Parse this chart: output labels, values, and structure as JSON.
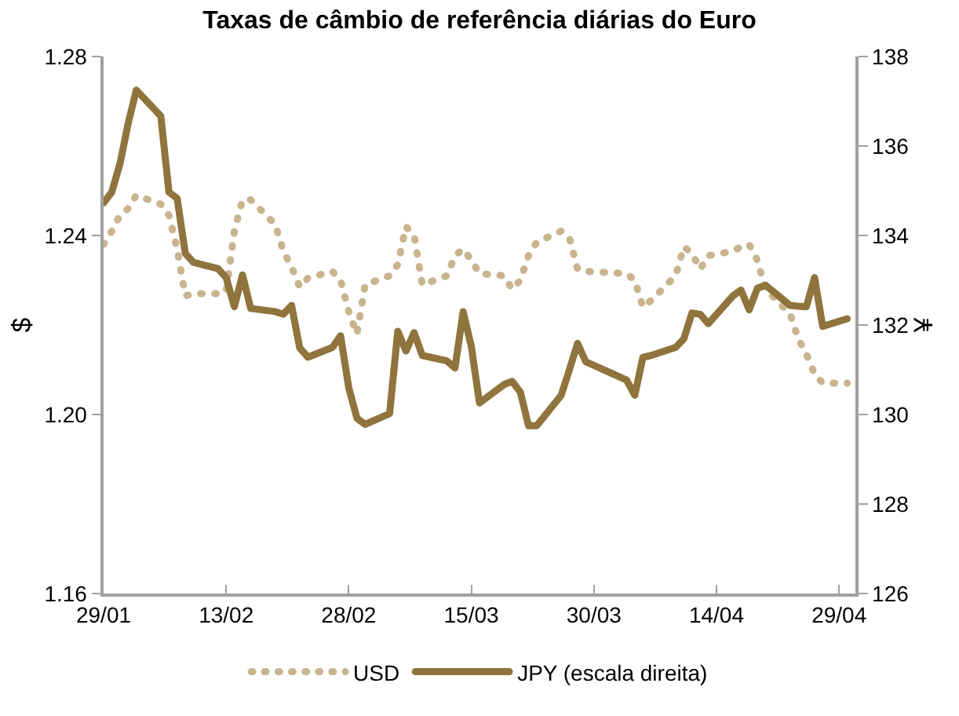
{
  "chart_data": {
    "type": "line",
    "title": "Taxas de câmbio de referência diárias do Euro",
    "ylabel": "$",
    "y2label": "¥",
    "xlim": [
      "--01-29",
      "--05-01"
    ],
    "xticks": [
      {
        "value": "--01-29",
        "label": "29/01"
      },
      {
        "value": "--02-13",
        "label": "13/02"
      },
      {
        "value": "--02-28",
        "label": "28/02"
      },
      {
        "value": "--03-15",
        "label": "15/03"
      },
      {
        "value": "--03-30",
        "label": "30/03"
      },
      {
        "value": "--04-14",
        "label": "14/04"
      },
      {
        "value": "--04-29",
        "label": "29/04"
      }
    ],
    "ylim": [
      1.16,
      1.28
    ],
    "yticks": [
      1.16,
      {
        "value": 1.2,
        "label": "1.20"
      },
      1.24,
      1.28
    ],
    "y2lim": [
      126,
      138
    ],
    "y2ticks": [
      126,
      128,
      130,
      132,
      134,
      136,
      138
    ],
    "legend": "bottom",
    "series": [
      {
        "name": "USD",
        "color": "#c8b48f",
        "line_style": "dotted",
        "marker": "none",
        "x": [
          "--01-29",
          "--01-30",
          "--01-31",
          "--02-01",
          "--02-02",
          "--02-05",
          "--02-06",
          "--02-07",
          "--02-08",
          "--02-09",
          "--02-12",
          "--02-13",
          "--02-14",
          "--02-15",
          "--02-16",
          "--02-19",
          "--02-20",
          "--02-21",
          "--02-22",
          "--02-23",
          "--02-26",
          "--02-27",
          "--02-28",
          "--03-01",
          "--03-02",
          "--03-05",
          "--03-06",
          "--03-07",
          "--03-08",
          "--03-09",
          "--03-12",
          "--03-13",
          "--03-14",
          "--03-15",
          "--03-16",
          "--03-19",
          "--03-20",
          "--03-21",
          "--03-22",
          "--03-23",
          "--03-26",
          "--03-27",
          "--03-28",
          "--03-29",
          "--04-03",
          "--04-04",
          "--04-05",
          "--04-06",
          "--04-09",
          "--04-10",
          "--04-11",
          "--04-12",
          "--04-13",
          "--04-16",
          "--04-17",
          "--04-18",
          "--04-19",
          "--04-20",
          "--04-23",
          "--04-24",
          "--04-25",
          "--04-26",
          "--04-27",
          "--04-30"
        ],
        "values": [
          1.238,
          1.241,
          1.2445,
          1.246,
          1.249,
          1.247,
          1.2445,
          1.237,
          1.2265,
          1.227,
          1.227,
          1.2275,
          1.241,
          1.248,
          1.248,
          1.2425,
          1.2365,
          1.233,
          1.2285,
          1.2305,
          1.232,
          1.23,
          1.223,
          1.218,
          1.229,
          1.231,
          1.2335,
          1.242,
          1.24,
          1.229,
          1.231,
          1.2355,
          1.237,
          1.2345,
          1.2315,
          1.231,
          1.228,
          1.23,
          1.2355,
          1.2385,
          1.241,
          1.2395,
          1.2325,
          1.232,
          1.2315,
          1.23,
          1.224,
          1.2255,
          1.231,
          1.2375,
          1.236,
          1.2325,
          1.2355,
          1.2365,
          1.2375,
          1.238,
          1.2345,
          1.228,
          1.2225,
          1.217,
          1.2135,
          1.209,
          1.207,
          1.207
        ]
      },
      {
        "name": "JPY (escala direita)",
        "color": "#8f743d",
        "axis": "y2",
        "line_style": "solid",
        "marker": "none",
        "x": [
          "--01-29",
          "--01-30",
          "--01-31",
          "--02-01",
          "--02-02",
          "--02-05",
          "--02-06",
          "--02-07",
          "--02-08",
          "--02-09",
          "--02-12",
          "--02-13",
          "--02-14",
          "--02-15",
          "--02-16",
          "--02-19",
          "--02-20",
          "--02-21",
          "--02-22",
          "--02-23",
          "--02-26",
          "--02-27",
          "--02-28",
          "--03-01",
          "--03-02",
          "--03-05",
          "--03-06",
          "--03-07",
          "--03-08",
          "--03-09",
          "--03-12",
          "--03-13",
          "--03-14",
          "--03-15",
          "--03-16",
          "--03-19",
          "--03-20",
          "--03-21",
          "--03-22",
          "--03-23",
          "--03-26",
          "--03-27",
          "--03-28",
          "--03-29",
          "--04-03",
          "--04-04",
          "--04-05",
          "--04-06",
          "--04-09",
          "--04-10",
          "--04-11",
          "--04-12",
          "--04-13",
          "--04-16",
          "--04-17",
          "--04-18",
          "--04-19",
          "--04-20",
          "--04-23",
          "--04-24",
          "--04-25",
          "--04-26",
          "--04-27",
          "--04-30"
        ],
        "values": [
          134.73,
          134.97,
          135.6,
          136.5,
          137.25,
          136.67,
          134.97,
          134.83,
          133.6,
          133.4,
          133.26,
          133.06,
          132.41,
          133.12,
          132.37,
          132.3,
          132.24,
          132.44,
          131.49,
          131.28,
          131.5,
          131.76,
          130.6,
          129.92,
          129.78,
          130.02,
          131.86,
          131.42,
          131.83,
          131.32,
          131.2,
          131.04,
          132.3,
          131.52,
          130.26,
          130.67,
          130.74,
          130.5,
          129.75,
          129.75,
          130.43,
          131.0,
          131.59,
          131.18,
          130.77,
          130.43,
          131.28,
          131.32,
          131.5,
          131.69,
          132.27,
          132.24,
          132.03,
          132.65,
          132.78,
          132.34,
          132.82,
          132.89,
          132.44,
          132.42,
          132.41,
          133.06,
          131.97,
          132.14
        ]
      }
    ]
  }
}
